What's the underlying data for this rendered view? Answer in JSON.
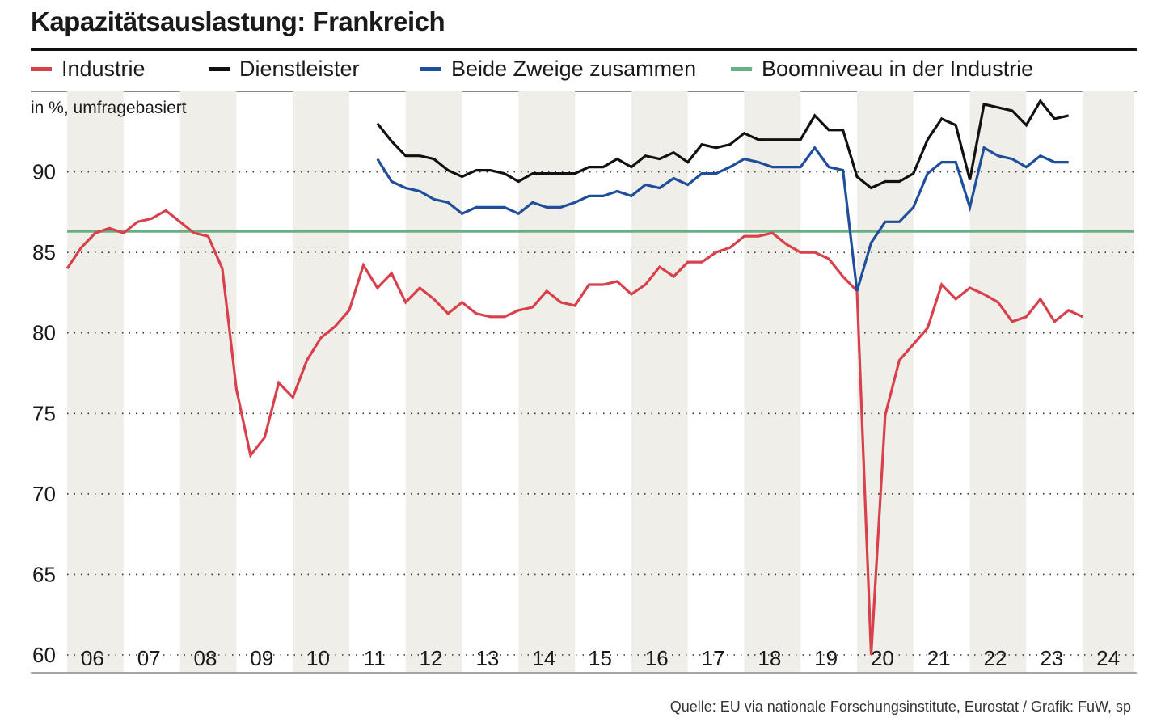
{
  "header": {
    "title": "Kapazitätsauslastung: Frankreich",
    "subtitle": "in %, umfragebasiert",
    "source": "Quelle: EU via nationale Forschungsinstitute, Eurostat / Grafik: FuW, sp"
  },
  "colors": {
    "industrie": "#d8404b",
    "dienstleister": "#111111",
    "beide": "#1f4e9a",
    "boom": "#6aae84",
    "band": "#efeee9",
    "grid": "#333333"
  },
  "chart_data": {
    "type": "line",
    "title": "Kapazitätsauslastung: Frankreich",
    "ylabel": "in %, umfragebasiert",
    "ylim": [
      60,
      95
    ],
    "yticks": [
      60,
      65,
      70,
      75,
      80,
      85,
      90
    ],
    "xlim": [
      2006,
      2024.9
    ],
    "xticks": [
      "06",
      "07",
      "08",
      "09",
      "10",
      "11",
      "12",
      "13",
      "14",
      "15",
      "16",
      "17",
      "18",
      "19",
      "20",
      "21",
      "22",
      "23",
      "24"
    ],
    "grid": "dotted horizontal",
    "shaded_years": [
      2006,
      2008,
      2010,
      2012,
      2014,
      2016,
      2018,
      2020,
      2022,
      2024
    ],
    "legend": [
      {
        "name": "Industrie",
        "color": "#d8404b"
      },
      {
        "name": "Dienstleister",
        "color": "#111111"
      },
      {
        "name": "Beide Zweige zusammen",
        "color": "#1f4e9a"
      },
      {
        "name": "Boomniveau in der Industrie",
        "color": "#6aae84"
      }
    ],
    "boom_level": 86.3,
    "series": [
      {
        "name": "Industrie",
        "start": 2006.0,
        "step": 0.25,
        "values": [
          84.0,
          85.3,
          86.2,
          86.5,
          86.2,
          86.9,
          87.1,
          87.6,
          86.9,
          86.2,
          86.0,
          84.0,
          76.5,
          72.4,
          73.5,
          76.9,
          76.0,
          78.3,
          79.7,
          80.4,
          81.4,
          84.2,
          82.8,
          83.7,
          81.9,
          82.8,
          82.1,
          81.2,
          81.9,
          81.2,
          81.0,
          81.0,
          81.4,
          81.6,
          82.6,
          81.9,
          81.7,
          83.0,
          83.0,
          83.2,
          82.4,
          83.0,
          84.1,
          83.5,
          84.4,
          84.4,
          85.0,
          85.3,
          86.0,
          86.0,
          86.2,
          85.5,
          85.0,
          85.0,
          84.6,
          83.5,
          82.6,
          60.0,
          74.9,
          78.3,
          79.3,
          80.3,
          83.0,
          82.1,
          82.8,
          82.4,
          81.9,
          80.7,
          81.0,
          82.1,
          80.7,
          81.4,
          81.0
        ]
      },
      {
        "name": "Dienstleister",
        "start": 2011.5,
        "step": 0.25,
        "values": [
          93.0,
          91.9,
          91.0,
          91.0,
          90.8,
          90.1,
          89.7,
          90.1,
          90.1,
          89.9,
          89.4,
          89.9,
          89.9,
          89.9,
          89.9,
          90.3,
          90.3,
          90.8,
          90.3,
          91.0,
          90.8,
          91.2,
          90.6,
          91.7,
          91.5,
          91.7,
          92.4,
          92.0,
          92.0,
          92.0,
          92.0,
          93.5,
          92.6,
          92.6,
          89.7,
          89.0,
          89.4,
          89.4,
          89.9,
          92.0,
          93.3,
          92.9,
          89.5,
          94.2,
          94.0,
          93.8,
          92.9,
          94.4,
          93.3,
          93.5
        ]
      },
      {
        "name": "Beide Zweige zusammen",
        "start": 2011.5,
        "step": 0.25,
        "values": [
          90.8,
          89.4,
          89.0,
          88.8,
          88.3,
          88.1,
          87.4,
          87.8,
          87.8,
          87.8,
          87.4,
          88.1,
          87.8,
          87.8,
          88.1,
          88.5,
          88.5,
          88.8,
          88.5,
          89.2,
          89.0,
          89.6,
          89.2,
          89.9,
          89.9,
          90.3,
          90.8,
          90.6,
          90.3,
          90.3,
          90.3,
          91.5,
          90.3,
          90.1,
          82.6,
          85.6,
          86.9,
          86.9,
          87.8,
          89.9,
          90.6,
          90.6,
          87.8,
          91.5,
          91.0,
          90.8,
          90.3,
          91.0,
          90.6,
          90.6
        ]
      }
    ]
  }
}
